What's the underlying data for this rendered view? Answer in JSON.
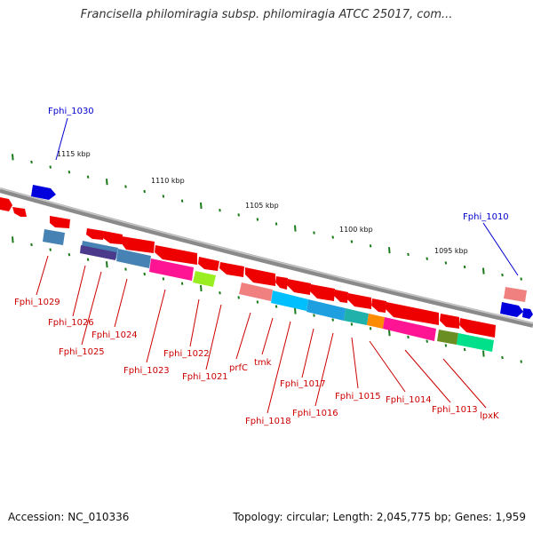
{
  "title": "Francisella philomiragia subsp. philomiragia ATCC 25017, com...",
  "footer": {
    "accession": "Accession: NC_010336",
    "summary": "Topology: circular; Length: 2,045,775 bp; Genes: 1,959"
  },
  "scale_labels": [
    "1115 kbp",
    "1110 kbp",
    "1105 kbp",
    "1100 kbp",
    "1095 kbp"
  ],
  "genes": {
    "g1030": "Fphi_1030",
    "g1010": "Fphi_1010",
    "g1029": "Fphi_1029",
    "g1026": "Fphi_1026",
    "g1025": "Fphi_1025",
    "g1024": "Fphi_1024",
    "g1023": "Fphi_1023",
    "g1022": "Fphi_1022",
    "g1021": "Fphi_1021",
    "prfC": "prfC",
    "tmk": "tmk",
    "g1018": "Fphi_1018",
    "g1017": "Fphi_1017",
    "g1016": "Fphi_1016",
    "g1015": "Fphi_1015",
    "g1014": "Fphi_1014",
    "g1013": "Fphi_1013",
    "lpxK": "lpxK"
  },
  "colors": {
    "backbone": "#8a8a8a",
    "tick": "#1a7a1a",
    "gene_red": "#ee0000",
    "gene_blue": "#0000dd",
    "steel": "#4682b4",
    "purple": "#4b3a8c",
    "magenta": "#ff1493",
    "lime": "#99ee22",
    "salmon": "#f08080",
    "cyan": "#00bfff",
    "teal": "#20b2aa",
    "orange": "#ff8c00",
    "olive": "#6b8e23",
    "spring": "#00e08a"
  }
}
